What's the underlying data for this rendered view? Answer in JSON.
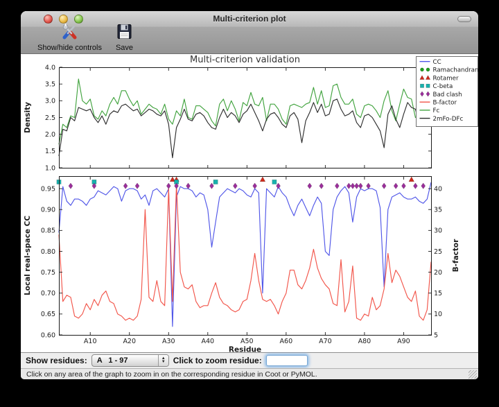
{
  "window": {
    "title": "Multi-criterion plot"
  },
  "toolbar": {
    "items": [
      {
        "label": "Show/hide controls",
        "icon": "tools-icon"
      },
      {
        "label": "Save",
        "icon": "save-icon"
      }
    ]
  },
  "controls": {
    "show_residues_label": "Show residues:",
    "residue_range_value": "A   1 - 97",
    "zoom_label": "Click to zoom residue:",
    "zoom_input_value": ""
  },
  "status_bar": {
    "text": "Click on any area of the graph to zoom in on the corresponding residue in Coot or PyMOL."
  },
  "chart_data": [
    {
      "type": "line",
      "title": "Multi-criterion validation",
      "ylabel": "Density",
      "ylim": [
        1.0,
        4.0
      ],
      "yticks": [
        1.0,
        1.5,
        2.0,
        2.5,
        3.0,
        3.5,
        4.0
      ],
      "xlim": [
        2,
        97
      ],
      "x_start": 2,
      "grid": false,
      "legend": {
        "position": "upper right",
        "entries": [
          {
            "label": "CC",
            "type": "line",
            "color": "#5056e8"
          },
          {
            "label": "Ramachandran",
            "type": "marker",
            "shape": "circle",
            "color": "#1e9e1e"
          },
          {
            "label": "Rotamer",
            "type": "marker",
            "shape": "triangle",
            "color": "#cf2a1b"
          },
          {
            "label": "C-beta",
            "type": "marker",
            "shape": "square",
            "color": "#17b2ae"
          },
          {
            "label": "Bad clash",
            "type": "marker",
            "shape": "diamond",
            "color": "#9b2f9b"
          },
          {
            "label": "B-factor",
            "type": "line",
            "color": "#f2554a"
          },
          {
            "label": "Fc",
            "type": "line",
            "color": "#41a33e"
          },
          {
            "label": "2mFo-DFc",
            "type": "line",
            "color": "#2e2e2e"
          }
        ]
      },
      "series": [
        {
          "name": "Fc",
          "color": "#41a33e",
          "values": [
            1.7,
            2.3,
            2.2,
            2.55,
            2.5,
            3.65,
            3.0,
            2.9,
            3.05,
            2.55,
            2.45,
            2.7,
            2.55,
            2.9,
            3.1,
            2.9,
            3.3,
            3.3,
            3.05,
            2.85,
            3.0,
            2.6,
            2.75,
            2.9,
            2.8,
            2.75,
            2.6,
            2.9,
            2.45,
            2.3,
            2.7,
            2.55,
            3.05,
            2.5,
            2.45,
            2.85,
            2.85,
            2.75,
            2.65,
            2.4,
            2.25,
            2.9,
            3.05,
            2.7,
            3.0,
            2.75,
            2.4,
            2.95,
            2.85,
            3.25,
            2.9,
            2.85,
            3.1,
            2.4,
            2.9,
            2.9,
            2.75,
            2.45,
            2.3,
            2.85,
            2.9,
            2.85,
            2.8,
            2.9,
            2.95,
            3.4,
            2.9,
            3.3,
            2.8,
            2.85,
            3.45,
            3.5,
            3.1,
            2.9,
            2.9,
            3.05,
            2.6,
            2.5,
            2.85,
            2.9,
            2.85,
            2.7,
            2.5,
            3.0,
            3.3,
            2.7,
            2.4,
            2.9,
            3.35,
            3.1,
            3.05,
            2.5,
            2.55,
            3.2,
            3.5,
            3.45
          ]
        },
        {
          "name": "2mFo-DFc",
          "color": "#2e2e2e",
          "values": [
            1.35,
            2.15,
            2.1,
            2.5,
            2.4,
            2.8,
            2.75,
            2.7,
            2.75,
            2.5,
            2.35,
            2.55,
            2.3,
            2.6,
            2.7,
            2.65,
            2.85,
            2.9,
            2.8,
            2.7,
            2.75,
            2.55,
            2.65,
            2.75,
            2.7,
            2.6,
            2.55,
            2.7,
            2.3,
            1.3,
            2.2,
            2.45,
            2.75,
            2.45,
            2.4,
            2.6,
            2.65,
            2.55,
            2.35,
            2.2,
            2.15,
            2.5,
            2.75,
            2.5,
            2.65,
            2.55,
            2.35,
            2.6,
            2.7,
            2.9,
            2.65,
            2.4,
            2.1,
            2.45,
            2.6,
            2.65,
            2.5,
            2.3,
            2.2,
            2.55,
            2.65,
            2.45,
            1.75,
            2.4,
            2.65,
            2.95,
            2.65,
            2.9,
            2.55,
            2.6,
            3.0,
            3.05,
            2.75,
            2.55,
            2.6,
            2.7,
            2.35,
            2.2,
            2.55,
            2.6,
            2.5,
            2.3,
            2.1,
            1.6,
            2.6,
            2.85,
            2.45,
            2.2,
            2.6,
            2.95,
            2.8,
            2.75,
            2.3,
            2.35,
            2.9,
            3.1
          ]
        }
      ]
    },
    {
      "type": "line",
      "xlabel": "Residue",
      "ylabel_left": "Local real-space CC",
      "ylabel_right": "B-factor",
      "ylim_left": [
        0.6,
        0.98
      ],
      "ylim_right": [
        5,
        43
      ],
      "yticks_left": [
        0.6,
        0.65,
        0.7,
        0.75,
        0.8,
        0.85,
        0.9,
        0.95
      ],
      "yticks_right": [
        5,
        10,
        15,
        20,
        25,
        30,
        35,
        40
      ],
      "xticks": [
        {
          "v": 10,
          "label": "A10"
        },
        {
          "v": 20,
          "label": "A20"
        },
        {
          "v": 30,
          "label": "A30"
        },
        {
          "v": 40,
          "label": "A40"
        },
        {
          "v": 50,
          "label": "A50"
        },
        {
          "v": 60,
          "label": "A60"
        },
        {
          "v": 70,
          "label": "A70"
        },
        {
          "v": 80,
          "label": "A80"
        },
        {
          "v": 90,
          "label": "A90"
        }
      ],
      "xlim": [
        2,
        97
      ],
      "x_start": 2,
      "series": [
        {
          "name": "CC",
          "axis": "left",
          "color": "#5056e8",
          "values": [
            0.845,
            0.955,
            0.92,
            0.91,
            0.925,
            0.925,
            0.92,
            0.91,
            0.925,
            0.93,
            0.945,
            0.94,
            0.935,
            0.945,
            0.955,
            0.95,
            0.92,
            0.945,
            0.95,
            0.95,
            0.945,
            0.925,
            0.935,
            0.91,
            0.945,
            0.95,
            0.94,
            0.93,
            0.95,
            0.62,
            0.93,
            0.955,
            0.95,
            0.95,
            0.945,
            0.93,
            0.94,
            0.935,
            0.9,
            0.81,
            0.87,
            0.93,
            0.94,
            0.95,
            0.945,
            0.94,
            0.95,
            0.945,
            0.935,
            0.93,
            0.95,
            0.94,
            0.7,
            0.95,
            0.94,
            0.93,
            0.955,
            0.94,
            0.93,
            0.905,
            0.885,
            0.91,
            0.925,
            0.905,
            0.885,
            0.91,
            0.93,
            0.915,
            0.8,
            0.79,
            0.9,
            0.93,
            0.945,
            0.955,
            0.94,
            0.87,
            0.93,
            0.95,
            0.945,
            0.95,
            0.95,
            0.945,
            0.905,
            0.715,
            0.9,
            0.93,
            0.935,
            0.94,
            0.93,
            0.925,
            0.925,
            0.93,
            0.92,
            0.915,
            0.925,
            0.965
          ]
        },
        {
          "name": "B-factor",
          "axis": "right",
          "color": "#f2554a",
          "values": [
            29,
            13,
            14.5,
            14,
            9.5,
            9,
            10,
            12.5,
            11,
            13.5,
            12,
            14.5,
            15.5,
            13,
            12.5,
            10,
            9.5,
            8.5,
            9,
            8.5,
            9.5,
            13.5,
            35,
            14,
            13,
            18,
            13,
            12,
            40,
            13,
            41,
            20,
            16.5,
            16,
            17,
            13,
            11.5,
            12,
            12,
            15,
            17.5,
            14,
            12.5,
            12,
            11,
            10.5,
            11,
            13,
            13.5,
            18,
            24.5,
            18,
            13.5,
            13,
            13.5,
            12,
            10,
            13,
            15,
            20.5,
            20.5,
            17,
            16,
            18,
            21,
            25.5,
            21,
            18.5,
            17,
            16,
            12.5,
            12,
            23,
            10.5,
            13,
            21.5,
            9,
            8.5,
            10,
            9.5,
            14,
            11,
            12,
            16,
            24.5,
            17.5,
            20.5,
            19,
            16.5,
            14,
            13,
            15.5,
            9.5,
            8.5,
            11,
            22.5
          ]
        }
      ],
      "markers": [
        {
          "name": "Ramachandran",
          "shape": "circle",
          "color": "#1e9e1e",
          "y": 0.976,
          "residues": []
        },
        {
          "name": "Rotamer",
          "shape": "triangle",
          "color": "#cf2a1b",
          "y": 0.972,
          "residues": [
            31,
            32,
            54,
            92
          ]
        },
        {
          "name": "C-beta",
          "shape": "square",
          "color": "#17b2ae",
          "y": 0.966,
          "residues": [
            2,
            11,
            32,
            42,
            57
          ]
        },
        {
          "name": "Bad clash",
          "shape": "diamond",
          "color": "#9b2f9b",
          "y": 0.9565,
          "residues": [
            5,
            11,
            19,
            22,
            30,
            32,
            35,
            41,
            47,
            52,
            58,
            66,
            69,
            73,
            76,
            77,
            78,
            79,
            81,
            85,
            88,
            90,
            93,
            95
          ]
        }
      ]
    }
  ]
}
